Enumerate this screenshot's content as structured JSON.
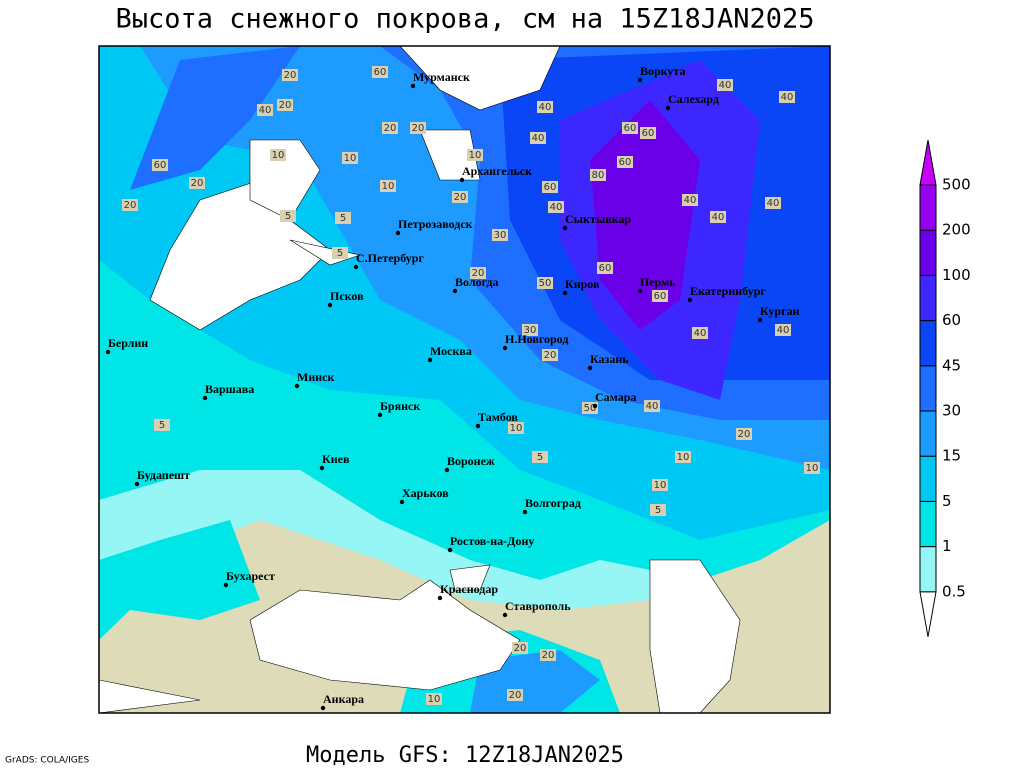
{
  "map": {
    "title": "Высота снежного покрова, см на 15Z18JAN2025",
    "footer": "Модель GFS: 12Z18JAN2025",
    "credit": "GrADS: COLA/IGES",
    "cities": [
      "Мурманск",
      "Архангельск",
      "Петрозаводск",
      "С.Петербург",
      "Сыктывкар",
      "Воркута",
      "Салехард",
      "Вологда",
      "Псков",
      "Киров",
      "Пермь",
      "Екатеринбург",
      "Курган",
      "Берлин",
      "Н.Новгород",
      "Москва",
      "Казань",
      "Минск",
      "Варшава",
      "Брянск",
      "Самара",
      "Тамбов",
      "Киев",
      "Воронеж",
      "Будапешт",
      "Харьков",
      "Волгоград",
      "Ростов-на-Дону",
      "Бухарест",
      "Краснодар",
      "Ставрополь",
      "Анкара"
    ],
    "contour_labels": [
      20,
      60,
      40,
      20,
      10,
      10,
      20,
      20,
      10,
      20,
      5,
      5,
      60,
      20,
      20,
      10,
      40,
      40,
      60,
      60,
      80,
      60,
      60,
      40,
      40,
      40,
      40,
      40,
      40,
      30,
      20,
      60,
      50,
      60,
      40,
      40,
      20,
      30,
      40,
      50,
      20,
      10,
      10,
      10,
      5,
      5,
      10,
      5,
      10,
      20,
      20,
      20,
      5
    ]
  },
  "legend": {
    "levels": [
      0.5,
      1,
      5,
      15,
      30,
      45,
      60,
      100,
      200,
      500
    ],
    "colors": [
      "#ffffff",
      "#96f5f5",
      "#00e6e6",
      "#00c8f5",
      "#1e9bff",
      "#1e6eff",
      "#0a46f5",
      "#3c28ff",
      "#6a00e8",
      "#9600f0",
      "#c800ff"
    ]
  }
}
